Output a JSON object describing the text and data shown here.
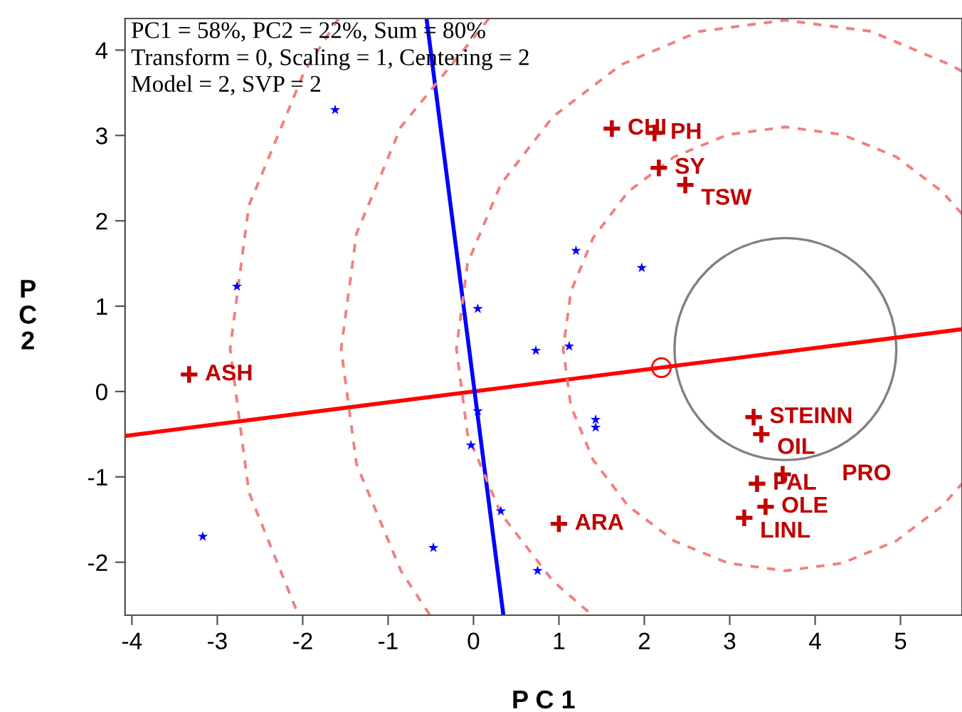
{
  "chart_data": {
    "type": "scatter",
    "xlabel": "P C 1",
    "ylabel": "P\nC\n2",
    "xlim": [
      -4.08,
      5.72
    ],
    "ylim": [
      -2.62,
      4.37
    ],
    "xticks": [
      -4,
      -3,
      -2,
      -1,
      0,
      1,
      2,
      3,
      4,
      5
    ],
    "yticks": [
      -2,
      -1,
      0,
      1,
      2,
      3,
      4
    ],
    "grid": false,
    "legend": false,
    "series": [
      {
        "type": "line",
        "color": "#ff0000",
        "line_style": "solid",
        "x": [
          -4.08,
          5.72
        ],
        "values": [
          -0.52,
          0.73
        ]
      },
      {
        "type": "line",
        "color": "#0000ff",
        "line_style": "solid",
        "x": [
          0.35,
          -0.55
        ],
        "values": [
          -2.62,
          4.37
        ]
      },
      {
        "type": "line",
        "color": "#f08080",
        "line_style": "dashed",
        "x": [
          5.72,
          5.49,
          4.95,
          4.32,
          3.65,
          2.98,
          2.35,
          1.81,
          1.4,
          1.14,
          1.05,
          1.14,
          1.4,
          1.81,
          2.35,
          2.98,
          3.65,
          4.32,
          4.95,
          5.49,
          5.72
        ],
        "values": [
          2.08,
          2.34,
          2.75,
          3.01,
          3.1,
          3.01,
          2.75,
          2.34,
          1.8,
          1.17,
          0.5,
          -0.17,
          -0.8,
          -1.34,
          -1.75,
          -2.01,
          -2.1,
          -2.01,
          -1.75,
          -1.34,
          -1.08
        ]
      },
      {
        "type": "line",
        "color": "#f08080",
        "line_style": "dashed",
        "x": [
          5.72,
          5.58,
          4.65,
          3.65,
          2.65,
          1.73,
          0.93,
          0.32,
          -0.07,
          -0.2,
          -0.07,
          0.32,
          0.93,
          1.39
        ],
        "values": [
          3.75,
          3.83,
          4.22,
          4.35,
          4.22,
          3.83,
          3.22,
          2.43,
          1.5,
          0.5,
          -0.5,
          -1.43,
          -2.22,
          -2.62
        ]
      },
      {
        "type": "line",
        "color": "#f08080",
        "line_style": "dashed",
        "x": [
          0.18,
          0.03,
          -0.85,
          -1.37,
          -1.55,
          -1.37,
          -0.85,
          -0.51
        ],
        "values": [
          4.37,
          4.18,
          3.1,
          1.85,
          0.5,
          -0.85,
          -2.1,
          -2.62
        ]
      },
      {
        "type": "line",
        "color": "#f08080",
        "line_style": "dashed",
        "x": [
          -1.58,
          -1.98,
          -2.63,
          -2.85,
          -2.63,
          -2.05
        ],
        "values": [
          4.37,
          3.75,
          2.18,
          0.5,
          -1.18,
          -2.62
        ]
      },
      {
        "type": "scatter",
        "color": "#ff0000",
        "marker": "circle",
        "x": [
          2.2
        ],
        "values": [
          0.28
        ]
      },
      {
        "color": "#0000ff",
        "marker": "star",
        "x": [
          -1.62,
          -2.77,
          1.2,
          1.97,
          0.05,
          0.73,
          1.12,
          0.05,
          -0.03,
          0.32,
          -0.47,
          0.75,
          -3.17,
          1.43,
          1.43
        ],
        "values": [
          3.3,
          1.23,
          1.65,
          1.45,
          0.97,
          0.48,
          0.53,
          -0.23,
          -0.63,
          -1.4,
          -1.83,
          -2.1,
          -1.7,
          -0.33,
          -0.42
        ]
      },
      {
        "type": "scatter",
        "color": "#c00000",
        "marker": "cross",
        "x": [
          1.62,
          2.12,
          2.17,
          2.48,
          -3.33,
          1.0,
          3.28,
          3.37,
          3.32,
          3.62,
          3.42,
          3.17
        ],
        "values": [
          3.08,
          3.03,
          2.62,
          2.42,
          0.2,
          -1.55,
          -0.3,
          -0.5,
          -1.08,
          -0.97,
          -1.35,
          -1.48
        ]
      }
    ],
    "annotations": [
      "PC1 = 58%, PC2 = 22%, Sum = 80%",
      "Transform = 0, Scaling = 1, Centering = 2",
      "Model = 2, SVP = 2",
      {
        "text": "CHI",
        "x": 1.62,
        "y": 3.08
      },
      {
        "text": "PH",
        "x": 2.12,
        "y": 3.03
      },
      {
        "text": "SY",
        "x": 2.17,
        "y": 2.62
      },
      {
        "text": "TSW",
        "x": 2.48,
        "y": 2.42
      },
      {
        "text": "ASH",
        "x": -3.33,
        "y": 0.2
      },
      {
        "text": "ARA",
        "x": 1.0,
        "y": -1.55
      },
      {
        "text": "STEINN",
        "x": 3.28,
        "y": -0.3
      },
      {
        "text": "OIL",
        "x": 3.37,
        "y": -0.5
      },
      {
        "text": "PAL",
        "x": 3.32,
        "y": -1.08
      },
      {
        "text": "PRO",
        "x": 3.62,
        "y": -0.97
      },
      {
        "text": "OLE",
        "x": 3.42,
        "y": -1.35
      },
      {
        "text": "LINL",
        "x": 3.17,
        "y": -1.48
      }
    ]
  }
}
